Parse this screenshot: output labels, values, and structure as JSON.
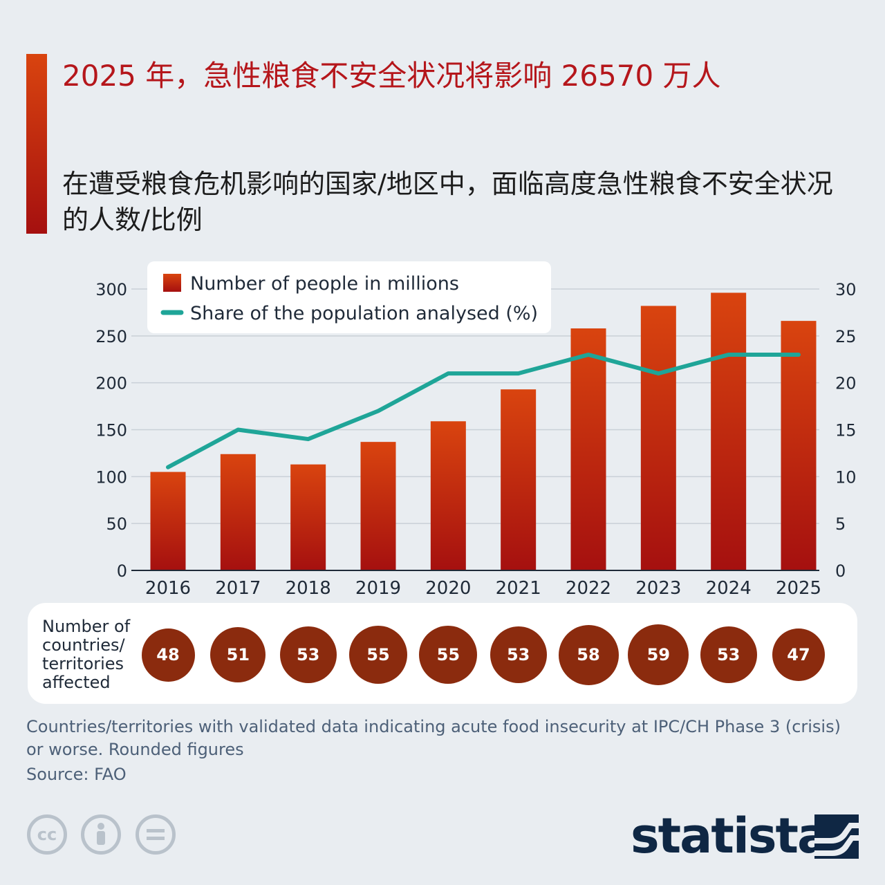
{
  "title": "2025 年，急性粮食不安全状况将影响 26570 万人",
  "subtitle": "在遭受粮食危机影响的国家/地区中，面临高度急性粮食不安全状况的人数/比例",
  "chart_data": {
    "type": "bar",
    "categories": [
      "2016",
      "2017",
      "2018",
      "2019",
      "2020",
      "2021",
      "2022",
      "2023",
      "2024",
      "2025"
    ],
    "series": [
      {
        "name": "Number of people in millions",
        "type": "bar",
        "axis": "left",
        "values": [
          105,
          124,
          113,
          137,
          159,
          193,
          258,
          282,
          296,
          266
        ]
      },
      {
        "name": "Share of the population analysed (%)",
        "type": "line",
        "axis": "right",
        "values": [
          11,
          15,
          14,
          17,
          21,
          21,
          23,
          21,
          23,
          23
        ]
      }
    ],
    "left_axis": {
      "ylim": [
        0,
        300
      ],
      "ticks": [
        "0",
        "50",
        "100",
        "150",
        "200",
        "250",
        "300"
      ]
    },
    "right_axis": {
      "ylim": [
        0,
        30
      ],
      "ticks": [
        "0",
        "5",
        "10",
        "15",
        "20",
        "25",
        "30"
      ]
    },
    "grid": true,
    "legend_position": "top-left",
    "colors": {
      "bar_top": "#d9440f",
      "bar_bottom": "#a5100f",
      "line": "#1fa598",
      "grid": "#c9d0d7"
    }
  },
  "countries": {
    "label": "Number of countries/ territories affected",
    "values": [
      48,
      51,
      53,
      55,
      55,
      53,
      58,
      59,
      53,
      47
    ]
  },
  "note": "Countries/territories with validated data indicating acute food insecurity at IPC/CH Phase 3 (crisis) or worse. Rounded figures",
  "source": "Source: FAO",
  "brand": {
    "name": "statista",
    "color": "#0f2744"
  },
  "license_icons": [
    "cc-icon",
    "attribution-icon",
    "no-derivatives-icon"
  ]
}
